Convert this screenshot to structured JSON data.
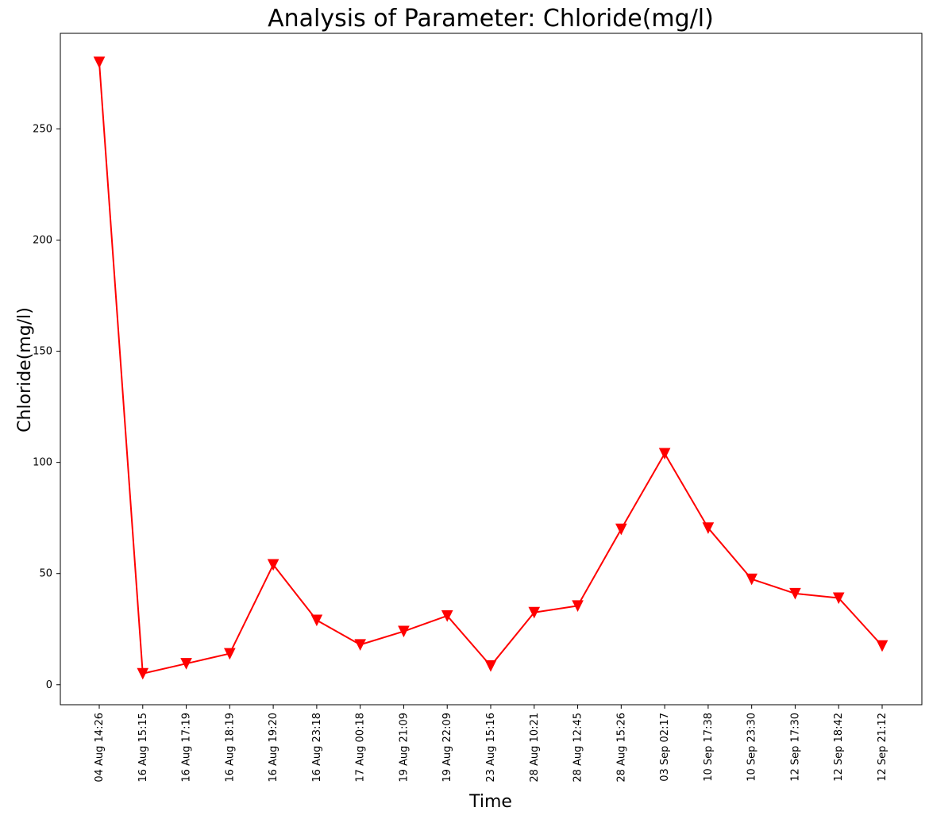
{
  "chart_data": {
    "type": "line",
    "title": "Analysis of Parameter: Chloride(mg/l)",
    "xlabel": "Time",
    "ylabel": "Chloride(mg/l)",
    "categories": [
      "04 Aug 14:26",
      "16 Aug 15:15",
      "16 Aug 17:19",
      "16 Aug 18:19",
      "16 Aug 19:20",
      "16 Aug 23:18",
      "17 Aug 00:18",
      "19 Aug 21:09",
      "19 Aug 22:09",
      "23 Aug 15:16",
      "28 Aug 10:21",
      "28 Aug 12:45",
      "28 Aug 15:26",
      "03 Sep 02:17",
      "10 Sep 17:38",
      "10 Sep 23:30",
      "12 Sep 17:30",
      "12 Sep 18:42",
      "12 Sep 21:12"
    ],
    "series": [
      {
        "values": [
          280,
          5,
          9.5,
          14,
          54,
          29,
          18,
          24,
          31,
          8.5,
          32.5,
          35.5,
          70,
          104,
          70.5,
          47.5,
          41,
          39,
          17.5
        ],
        "color": "#ff0000",
        "marker": "triangle-down"
      }
    ],
    "ylim": [
      -9,
      293
    ],
    "yticks": [
      0,
      50,
      100,
      150,
      200,
      250
    ],
    "grid": false,
    "legend": "none"
  }
}
